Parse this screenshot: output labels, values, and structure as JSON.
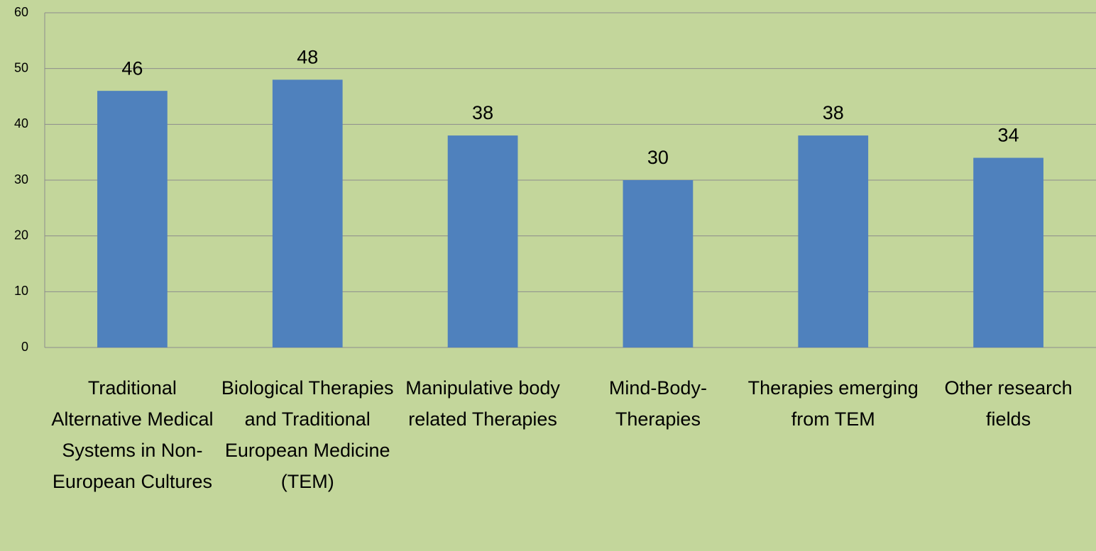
{
  "chart_data": {
    "type": "bar",
    "categories": [
      "Traditional Alternative Medical Systems in Non-European Cultures",
      "Biological Therapies and Traditional European Medicine (TEM)",
      "Manipulative body related Therapies",
      "Mind-Body-Therapies",
      "Therapies emerging from TEM",
      "Other research fields"
    ],
    "values": [
      46,
      48,
      38,
      30,
      38,
      34
    ],
    "color": "#4f81bd",
    "ylim": [
      0,
      60
    ],
    "yticks": [
      0,
      10,
      20,
      30,
      40,
      50,
      60
    ],
    "grid": true
  }
}
